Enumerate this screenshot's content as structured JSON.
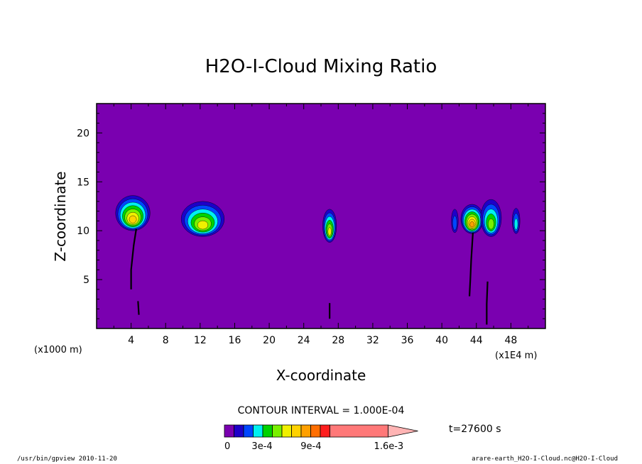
{
  "chart_data": {
    "type": "heatmap",
    "title": "H2O-I-Cloud Mixing Ratio",
    "xlabel": "X-coordinate",
    "ylabel": "Z-coordinate",
    "x_unit_left": "(x1000 m)",
    "x_unit_right": "(x1E4 m)",
    "xlim": [
      0,
      52
    ],
    "ylim": [
      0,
      23
    ],
    "x_ticks": [
      4,
      8,
      12,
      16,
      20,
      24,
      28,
      32,
      36,
      40,
      44,
      48
    ],
    "y_ticks": [
      5,
      10,
      15,
      20
    ],
    "background_color": "#7a00b0",
    "contour_interval_text": "CONTOUR INTERVAL = 1.000E-04",
    "time_label": "t=27600 s",
    "colorbar": {
      "colors": [
        "#7a00b0",
        "#1e00c8",
        "#0046ff",
        "#00f0f0",
        "#00d200",
        "#78f000",
        "#f0f000",
        "#ffd200",
        "#ffa000",
        "#ff6e00",
        "#ff1e1e",
        "#ff7878",
        "#ffb4b4"
      ],
      "labels": [
        "0",
        "3e-4",
        "9e-4",
        "1.6e-3"
      ]
    },
    "clouds": [
      {
        "x": 4.2,
        "z": 11.8,
        "width": 4.0,
        "height": 3.6,
        "max_level": 7
      },
      {
        "x": 12.3,
        "z": 11.2,
        "width": 5.0,
        "height": 3.6,
        "max_level": 6
      },
      {
        "x": 27.0,
        "z": 10.5,
        "width": 1.6,
        "height": 3.4,
        "max_level": 6
      },
      {
        "x": 41.5,
        "z": 11.0,
        "width": 0.8,
        "height": 2.4,
        "max_level": 2
      },
      {
        "x": 43.5,
        "z": 11.2,
        "width": 2.6,
        "height": 3.0,
        "max_level": 8
      },
      {
        "x": 45.7,
        "z": 11.3,
        "width": 2.4,
        "height": 3.8,
        "max_level": 5
      },
      {
        "x": 48.6,
        "z": 11.0,
        "width": 0.9,
        "height": 2.6,
        "max_level": 3
      }
    ],
    "streaks": [
      [
        [
          4.6,
          10.2
        ],
        [
          4.3,
          8.5
        ],
        [
          4.0,
          6.0
        ],
        [
          4.0,
          4.0
        ]
      ],
      [
        [
          4.8,
          2.8
        ],
        [
          4.9,
          1.4
        ]
      ],
      [
        [
          27.0,
          2.6
        ],
        [
          27.0,
          1.0
        ]
      ],
      [
        [
          43.6,
          9.8
        ],
        [
          43.4,
          7.0
        ],
        [
          43.3,
          5.0
        ],
        [
          43.2,
          3.3
        ]
      ],
      [
        [
          45.3,
          4.8
        ],
        [
          45.2,
          2.5
        ],
        [
          45.2,
          0.4
        ]
      ]
    ]
  },
  "footer": {
    "left": "/usr/bin/gpview  2010-11-20",
    "right": "arare-earth_H2O-I-Cloud.nc@H2O-I-Cloud"
  }
}
